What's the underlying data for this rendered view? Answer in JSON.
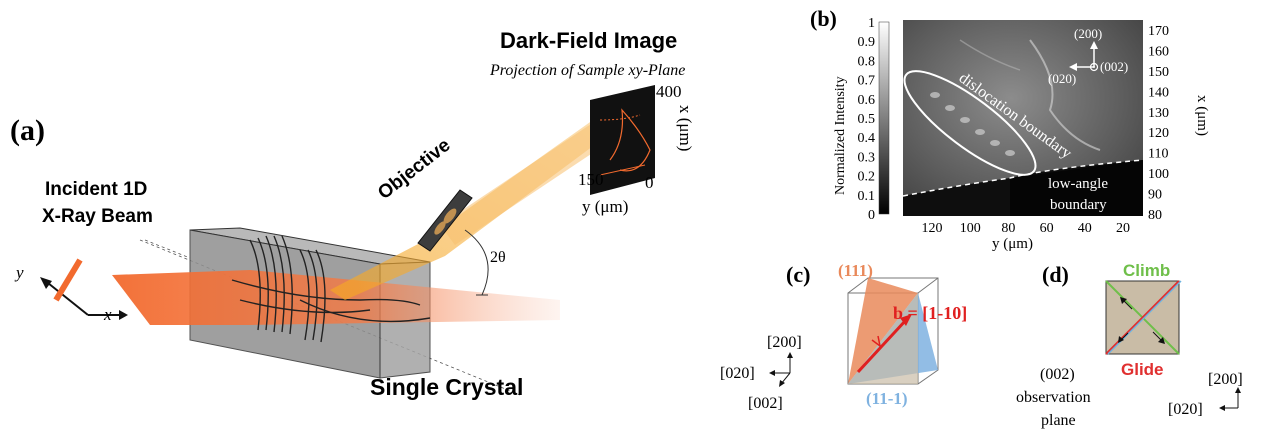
{
  "panel_a": {
    "label": "(a)",
    "incident_beam_line1": "Incident 1D",
    "incident_beam_line2": "X-Ray Beam",
    "crystal_label": "Single Crystal",
    "objective_label": "Objective",
    "angle_label": "2θ",
    "axis_y": "y",
    "axis_x": "x",
    "dark_field_title": "Dark-Field Image",
    "dark_field_subtitle": "Projection of Sample xy-Plane",
    "detector_x_tick_top": "400",
    "detector_x_label": "x (μm)",
    "detector_y_tick_left": "150",
    "detector_y_tick_right": "0",
    "detector_y_label": "y (μm)"
  },
  "panel_b": {
    "label": "(b)",
    "colorbar_label": "Normalized Intensity",
    "colorbar_ticks": [
      "1",
      "0.9",
      "0.8",
      "0.7",
      "0.6",
      "0.5",
      "0.4",
      "0.3",
      "0.2",
      "0.1",
      "0"
    ],
    "x_ticks": [
      "120",
      "100",
      "80",
      "60",
      "40",
      "20"
    ],
    "x_label": "y (μm)",
    "y_ticks_right": [
      "170",
      "160",
      "150",
      "140",
      "130",
      "120",
      "110",
      "100",
      "90",
      "80"
    ],
    "y_label_right": "x (μm)",
    "annotation_dislocation": "dislocation boundary",
    "annotation_low_angle_1": "low-angle",
    "annotation_low_angle_2": "boundary",
    "axis_200": "(200)",
    "axis_020": "(020)",
    "axis_002": "(002)"
  },
  "panel_c": {
    "label": "(c)",
    "plane_111": "(111)",
    "plane_11m1": "(11-1)",
    "burgers": "b = [1-10]",
    "axis_200": "[200]",
    "axis_020": "[020]",
    "axis_002": "[002]",
    "colors": {
      "plane_111": "#e9895a",
      "plane_11m1": "#7fb2e0",
      "burgers": "#e02020"
    }
  },
  "panel_d": {
    "label": "(d)",
    "climb": "Climb",
    "glide": "Glide",
    "obs_line1": "(002)",
    "obs_line2": "observation",
    "obs_line3": "plane",
    "axis_200": "[200]",
    "axis_020": "[020]",
    "colors": {
      "climb": "#6fbf4a",
      "glide": "#e03030"
    }
  }
}
